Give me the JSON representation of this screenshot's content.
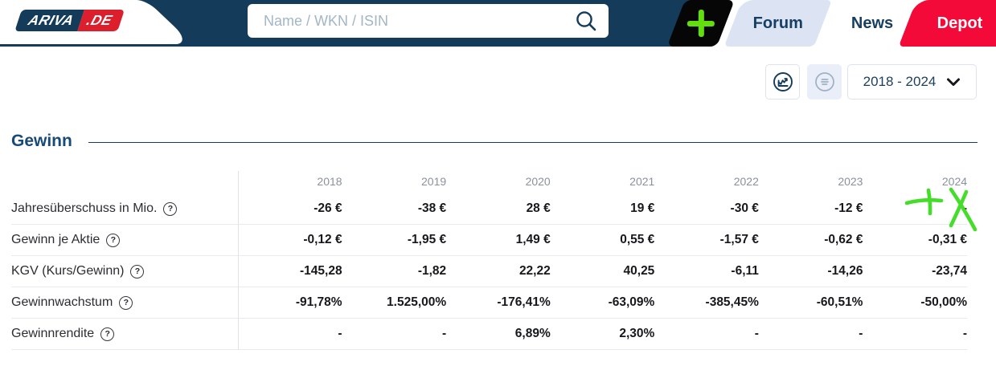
{
  "header": {
    "logo": {
      "brand": "ARIVA",
      "tld": ".DE"
    },
    "search": {
      "placeholder": "Name / WKN / ISIN"
    },
    "nav": {
      "forum": "Forum",
      "news": "News",
      "depot": "Depot"
    },
    "colors": {
      "navy": "#143c5a",
      "logo_red": "#dd1e2d",
      "depot_red": "#f30a38",
      "plus_green": "#62dd0e",
      "forum_tab_bg": "#dce4f4"
    }
  },
  "toolbar": {
    "chart_button_icon": "line-chart-icon",
    "list_button_icon": "list-icon",
    "period_dropdown": {
      "value": "2018 - 2024"
    }
  },
  "section": {
    "title": "Gewinn"
  },
  "table": {
    "help_glyph": "?",
    "years": [
      "2018",
      "2019",
      "2020",
      "2021",
      "2022",
      "2023",
      "2024"
    ],
    "rows": [
      {
        "label": "Jahresüberschuss in Mio.",
        "values": [
          "-26 €",
          "-38 €",
          "28 €",
          "19 €",
          "-30 €",
          "-12 €",
          "-"
        ]
      },
      {
        "label": "Gewinn je Aktie",
        "values": [
          "-0,12 €",
          "-1,95 €",
          "1,49 €",
          "0,55 €",
          "-1,57 €",
          "-0,62 €",
          "-0,31 €"
        ]
      },
      {
        "label": "KGV (Kurs/Gewinn)",
        "values": [
          "-145,28",
          "-1,82",
          "22,22",
          "40,25",
          "-6,11",
          "-14,26",
          "-23,74"
        ]
      },
      {
        "label": "Gewinnwachstum",
        "values": [
          "-91,78%",
          "1.525,00%",
          "-176,41%",
          "-63,09%",
          "-385,45%",
          "-60,51%",
          "-50,00%"
        ]
      },
      {
        "label": "Gewinnrendite",
        "values": [
          "-",
          "-",
          "6,89%",
          "2,30%",
          "-",
          "-",
          "-"
        ]
      }
    ]
  },
  "annotation": {
    "type": "hand-drawn-scribble",
    "description": "green marker plus sign and X drawn over the 2024 Jahresüberschuss cell",
    "color": "#3bdc1e"
  }
}
